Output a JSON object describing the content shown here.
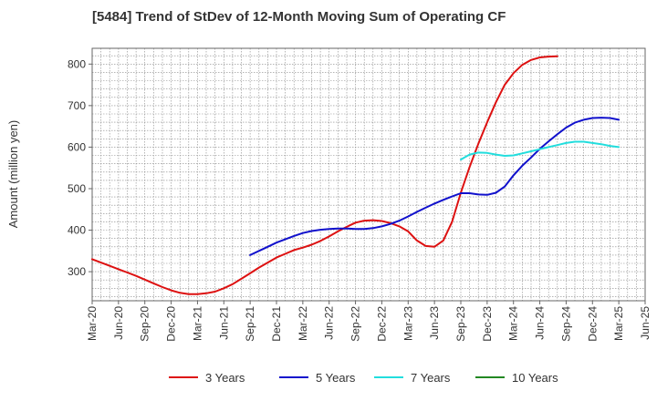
{
  "chart_data": {
    "type": "line",
    "title": "[5484]  Trend of StDev of 12-Month Moving Sum of Operating CF",
    "xlabel": "",
    "ylabel": "Amount (million yen)",
    "ylim": [
      230,
      838
    ],
    "yticks": [
      300,
      400,
      500,
      600,
      700,
      800
    ],
    "x_tick_labels": [
      "Mar-20",
      "Jun-20",
      "Sep-20",
      "Dec-20",
      "Mar-21",
      "Jun-21",
      "Sep-21",
      "Dec-21",
      "Mar-22",
      "Jun-22",
      "Sep-22",
      "Dec-22",
      "Mar-23",
      "Jun-23",
      "Sep-23",
      "Dec-23",
      "Mar-24",
      "Jun-24",
      "Sep-24",
      "Dec-24",
      "Mar-25",
      "Jun-25"
    ],
    "grid": true,
    "legend_position": "bottom",
    "series": [
      {
        "name": "3 Years",
        "color": "#dd1111",
        "points": [
          [
            0,
            330
          ],
          [
            1,
            322
          ],
          [
            2,
            314
          ],
          [
            3,
            306
          ],
          [
            4,
            298
          ],
          [
            5,
            290
          ],
          [
            6,
            281
          ],
          [
            7,
            272
          ],
          [
            8,
            263
          ],
          [
            9,
            255
          ],
          [
            10,
            249
          ],
          [
            11,
            246
          ],
          [
            12,
            246
          ],
          [
            13,
            248
          ],
          [
            14,
            252
          ],
          [
            15,
            260
          ],
          [
            16,
            270
          ],
          [
            17,
            283
          ],
          [
            18,
            296
          ],
          [
            19,
            310
          ],
          [
            20,
            322
          ],
          [
            21,
            334
          ],
          [
            22,
            343
          ],
          [
            23,
            352
          ],
          [
            24,
            358
          ],
          [
            25,
            365
          ],
          [
            26,
            374
          ],
          [
            27,
            385
          ],
          [
            28,
            397
          ],
          [
            29,
            408
          ],
          [
            30,
            418
          ],
          [
            31,
            423
          ],
          [
            32,
            424
          ],
          [
            33,
            422
          ],
          [
            34,
            417
          ],
          [
            35,
            409
          ],
          [
            36,
            397
          ],
          [
            37,
            375
          ],
          [
            38,
            362
          ],
          [
            39,
            360
          ],
          [
            40,
            375
          ],
          [
            41,
            420
          ],
          [
            42,
            490
          ],
          [
            43,
            552
          ],
          [
            44,
            608
          ],
          [
            45,
            660
          ],
          [
            46,
            708
          ],
          [
            47,
            750
          ],
          [
            48,
            778
          ],
          [
            49,
            798
          ],
          [
            50,
            810
          ],
          [
            51,
            816
          ],
          [
            52,
            818
          ],
          [
            53,
            819
          ]
        ]
      },
      {
        "name": "5 Years",
        "color": "#1111cc",
        "points": [
          [
            18,
            340
          ],
          [
            19,
            350
          ],
          [
            20,
            360
          ],
          [
            21,
            370
          ],
          [
            22,
            378
          ],
          [
            23,
            386
          ],
          [
            24,
            393
          ],
          [
            25,
            398
          ],
          [
            26,
            401
          ],
          [
            27,
            403
          ],
          [
            28,
            404
          ],
          [
            29,
            404
          ],
          [
            30,
            403
          ],
          [
            31,
            403
          ],
          [
            32,
            405
          ],
          [
            33,
            409
          ],
          [
            34,
            415
          ],
          [
            35,
            423
          ],
          [
            36,
            433
          ],
          [
            37,
            444
          ],
          [
            38,
            454
          ],
          [
            39,
            464
          ],
          [
            40,
            473
          ],
          [
            41,
            481
          ],
          [
            42,
            489
          ],
          [
            43,
            489
          ],
          [
            44,
            486
          ],
          [
            45,
            485
          ],
          [
            46,
            490
          ],
          [
            47,
            505
          ],
          [
            48,
            532
          ],
          [
            49,
            555
          ],
          [
            50,
            575
          ],
          [
            51,
            596
          ],
          [
            52,
            614
          ],
          [
            53,
            631
          ],
          [
            54,
            647
          ],
          [
            55,
            659
          ],
          [
            56,
            666
          ],
          [
            57,
            670
          ],
          [
            58,
            671
          ],
          [
            59,
            670
          ],
          [
            60,
            666
          ]
        ]
      },
      {
        "name": "7 Years",
        "color": "#22dddd",
        "points": [
          [
            42,
            570
          ],
          [
            43,
            582
          ],
          [
            44,
            587
          ],
          [
            45,
            586
          ],
          [
            46,
            582
          ],
          [
            47,
            579
          ],
          [
            48,
            580
          ],
          [
            49,
            585
          ],
          [
            50,
            590
          ],
          [
            51,
            595
          ],
          [
            52,
            600
          ],
          [
            53,
            605
          ],
          [
            54,
            610
          ],
          [
            55,
            613
          ],
          [
            56,
            613
          ],
          [
            57,
            610
          ],
          [
            58,
            607
          ],
          [
            59,
            603
          ],
          [
            60,
            600
          ]
        ]
      },
      {
        "name": "10 Years",
        "color": "#228822",
        "points": []
      }
    ]
  }
}
